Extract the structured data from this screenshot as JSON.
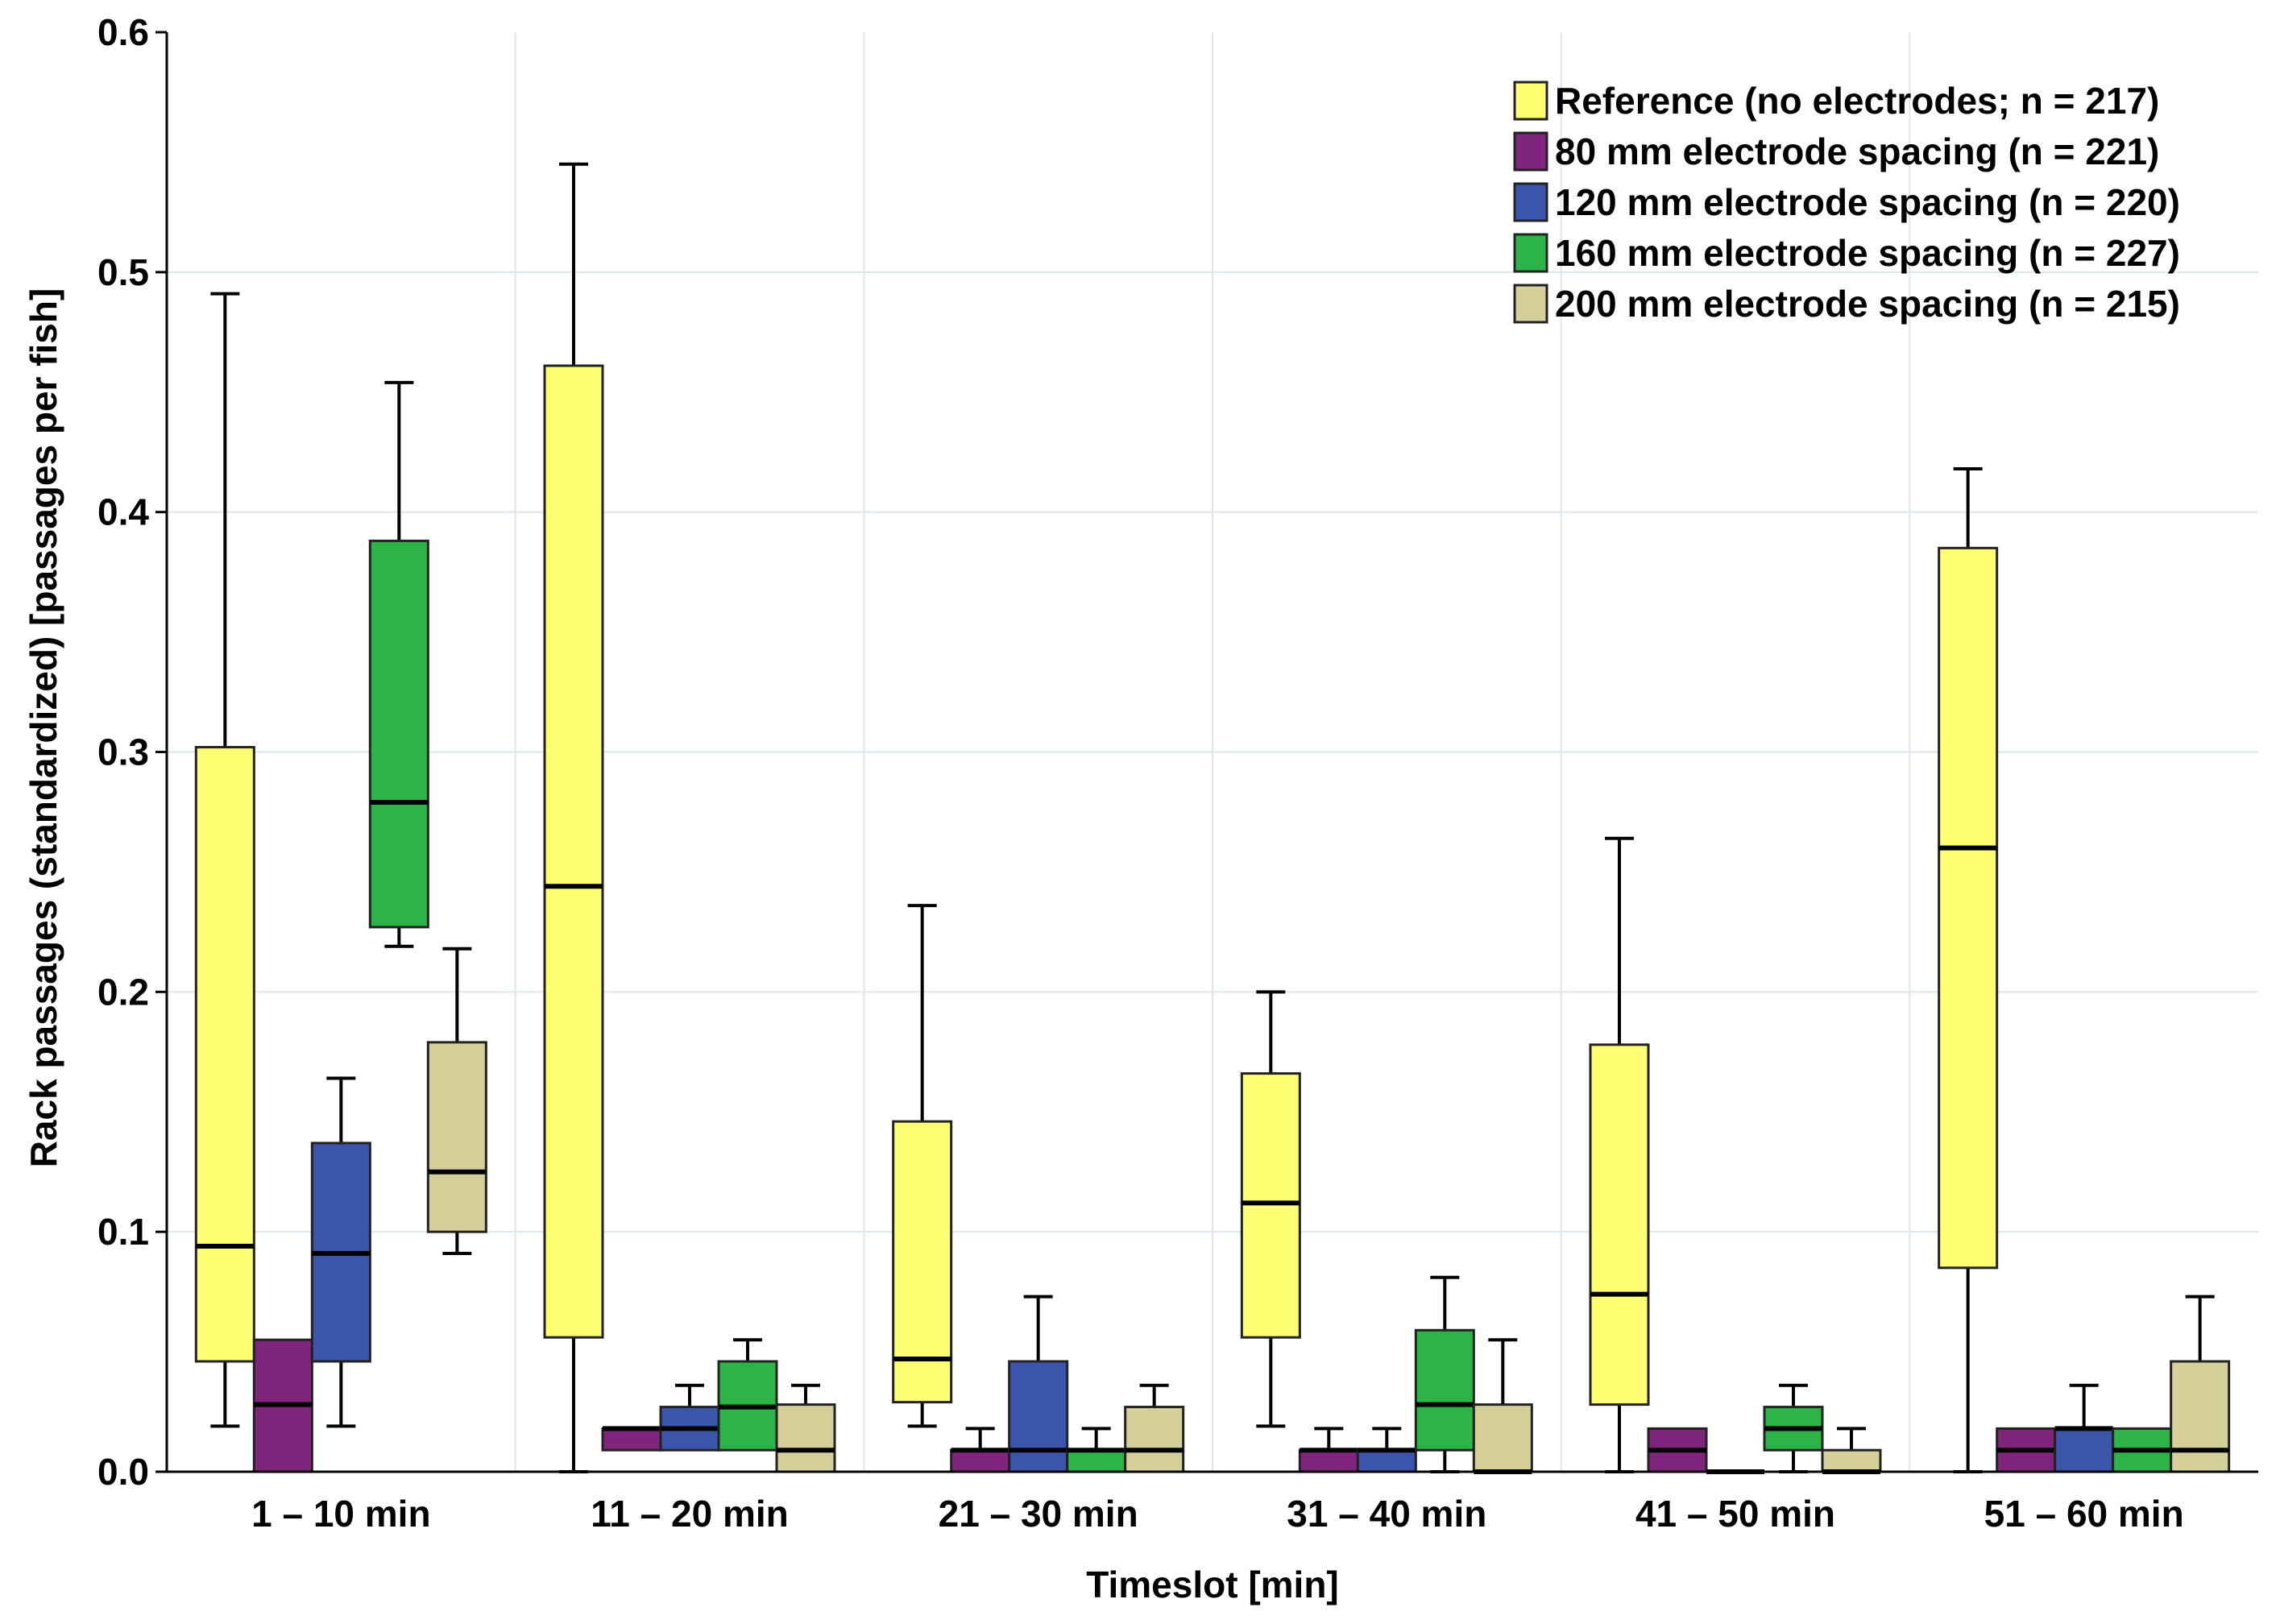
{
  "chart_data": {
    "type": "boxplot",
    "title": "",
    "xlabel": "Timeslot [min]",
    "ylabel": "Rack passages (standardized) [passages per fish]",
    "ylim": [
      0,
      0.6
    ],
    "yticks": [
      "0.0",
      "0.1",
      "0.2",
      "0.3",
      "0.4",
      "0.5",
      "0.6"
    ],
    "grid": true,
    "legend_position": "top-right",
    "categories": [
      "1 – 10 min",
      "11 – 20 min",
      "21 – 30 min",
      "31 – 40 min",
      "41 – 50 min",
      "51 – 60 min"
    ],
    "series": [
      {
        "name": "Reference (no electrodes; n = 217)",
        "color": "#ffff73",
        "boxes": [
          {
            "whisker_low": 0.019,
            "q1": 0.046,
            "median": 0.094,
            "q3": 0.302,
            "whisker_high": 0.491
          },
          {
            "whisker_low": 0.0,
            "q1": 0.056,
            "median": 0.244,
            "q3": 0.461,
            "whisker_high": 0.545
          },
          {
            "whisker_low": 0.019,
            "q1": 0.029,
            "median": 0.047,
            "q3": 0.146,
            "whisker_high": 0.236
          },
          {
            "whisker_low": 0.019,
            "q1": 0.056,
            "median": 0.112,
            "q3": 0.166,
            "whisker_high": 0.2
          },
          {
            "whisker_low": 0.0,
            "q1": 0.028,
            "median": 0.074,
            "q3": 0.178,
            "whisker_high": 0.264
          },
          {
            "whisker_low": 0.0,
            "q1": 0.085,
            "median": 0.26,
            "q3": 0.385,
            "whisker_high": 0.418
          }
        ]
      },
      {
        "name": "80 mm electrode spacing (n = 221)",
        "color": "#80257e",
        "boxes": [
          {
            "whisker_low": 0.0,
            "q1": 0.0,
            "median": 0.028,
            "q3": 0.055,
            "whisker_high": 0.055
          },
          {
            "whisker_low": 0.009,
            "q1": 0.009,
            "median": 0.018,
            "q3": 0.018,
            "whisker_high": 0.018
          },
          {
            "whisker_low": 0.0,
            "q1": 0.0,
            "median": 0.009,
            "q3": 0.009,
            "whisker_high": 0.018
          },
          {
            "whisker_low": 0.0,
            "q1": 0.0,
            "median": 0.009,
            "q3": 0.009,
            "whisker_high": 0.018
          },
          {
            "whisker_low": 0.0,
            "q1": 0.0,
            "median": 0.009,
            "q3": 0.018,
            "whisker_high": 0.018
          },
          {
            "whisker_low": 0.0,
            "q1": 0.0,
            "median": 0.009,
            "q3": 0.018,
            "whisker_high": 0.018
          }
        ]
      },
      {
        "name": "120 mm electrode spacing (n = 220)",
        "color": "#3b55aa",
        "boxes": [
          {
            "whisker_low": 0.019,
            "q1": 0.046,
            "median": 0.091,
            "q3": 0.137,
            "whisker_high": 0.164
          },
          {
            "whisker_low": 0.009,
            "q1": 0.009,
            "median": 0.018,
            "q3": 0.027,
            "whisker_high": 0.036
          },
          {
            "whisker_low": 0.0,
            "q1": 0.0,
            "median": 0.009,
            "q3": 0.046,
            "whisker_high": 0.073
          },
          {
            "whisker_low": 0.0,
            "q1": 0.0,
            "median": 0.009,
            "q3": 0.009,
            "whisker_high": 0.018
          },
          {
            "whisker_low": 0.0,
            "q1": 0.0,
            "median": 0.0,
            "q3": 0.0,
            "whisker_high": 0.0
          },
          {
            "whisker_low": 0.0,
            "q1": 0.0,
            "median": 0.018,
            "q3": 0.018,
            "whisker_high": 0.036
          }
        ]
      },
      {
        "name": "160 mm electrode spacing (n = 227)",
        "color": "#2db446",
        "boxes": [
          {
            "whisker_low": 0.219,
            "q1": 0.227,
            "median": 0.279,
            "q3": 0.388,
            "whisker_high": 0.454
          },
          {
            "whisker_low": 0.009,
            "q1": 0.009,
            "median": 0.027,
            "q3": 0.046,
            "whisker_high": 0.055
          },
          {
            "whisker_low": 0.0,
            "q1": 0.0,
            "median": 0.009,
            "q3": 0.009,
            "whisker_high": 0.018
          },
          {
            "whisker_low": 0.0,
            "q1": 0.009,
            "median": 0.028,
            "q3": 0.059,
            "whisker_high": 0.081
          },
          {
            "whisker_low": 0.0,
            "q1": 0.009,
            "median": 0.018,
            "q3": 0.027,
            "whisker_high": 0.036
          },
          {
            "whisker_low": 0.0,
            "q1": 0.0,
            "median": 0.009,
            "q3": 0.018,
            "whisker_high": 0.018
          }
        ]
      },
      {
        "name": "200 mm electrode spacing (n = 215)",
        "color": "#d5cf9a",
        "boxes": [
          {
            "whisker_low": 0.091,
            "q1": 0.1,
            "median": 0.125,
            "q3": 0.179,
            "whisker_high": 0.218
          },
          {
            "whisker_low": 0.0,
            "q1": 0.0,
            "median": 0.009,
            "q3": 0.028,
            "whisker_high": 0.036
          },
          {
            "whisker_low": 0.0,
            "q1": 0.0,
            "median": 0.009,
            "q3": 0.027,
            "whisker_high": 0.036
          },
          {
            "whisker_low": 0.0,
            "q1": 0.0,
            "median": 0.0,
            "q3": 0.028,
            "whisker_high": 0.055
          },
          {
            "whisker_low": 0.0,
            "q1": 0.0,
            "median": 0.0,
            "q3": 0.009,
            "whisker_high": 0.018
          },
          {
            "whisker_low": 0.0,
            "q1": 0.0,
            "median": 0.009,
            "q3": 0.046,
            "whisker_high": 0.073
          }
        ]
      }
    ]
  }
}
